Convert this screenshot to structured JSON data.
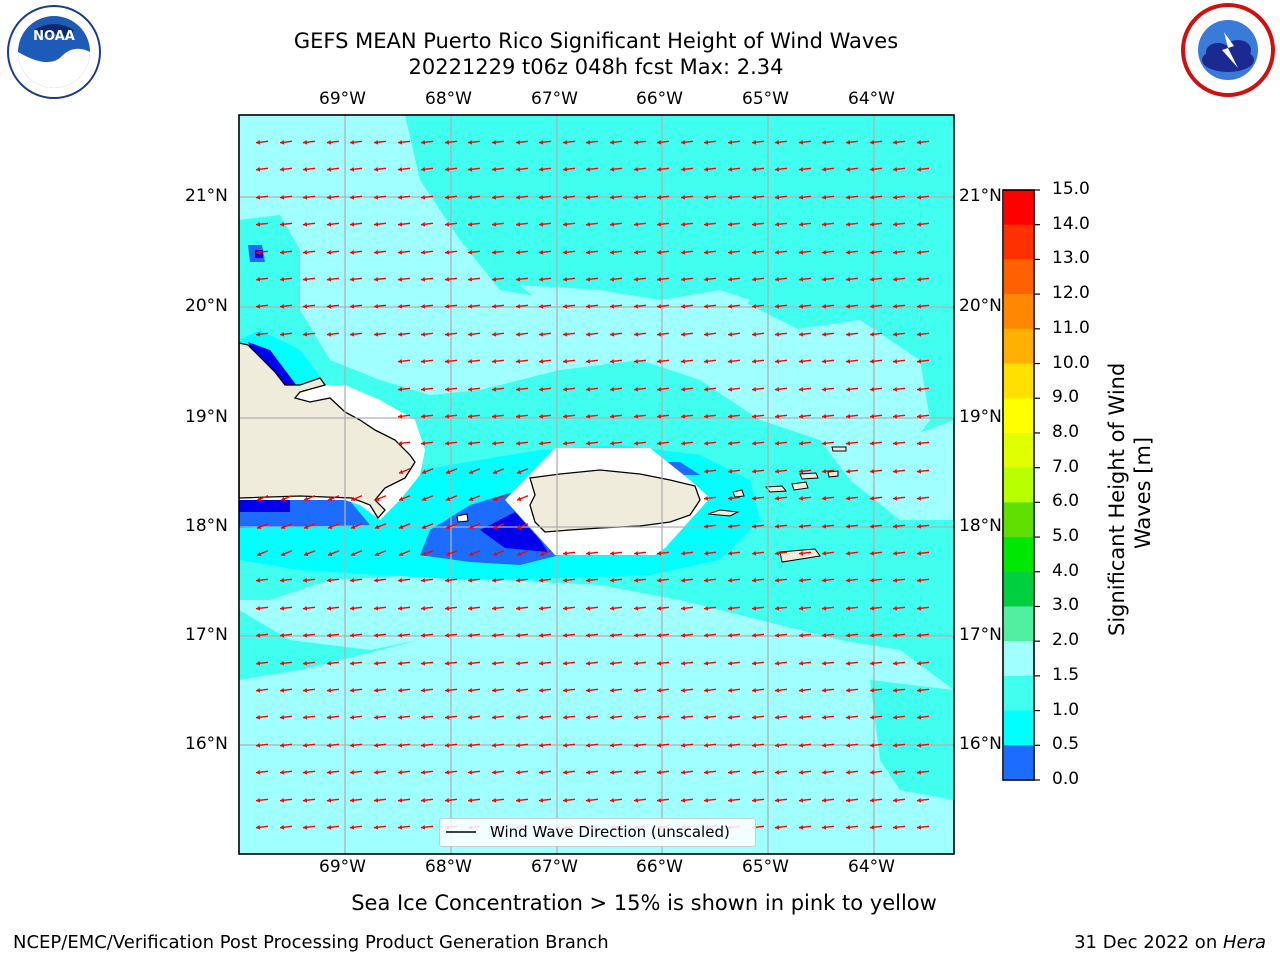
{
  "title": {
    "line1": "GEFS MEAN Puerto Rico Significant Height of Wind Waves",
    "line2": "20221229 t06z 048h fcst   Max: 2.34"
  },
  "logos": {
    "left": "noaa-logo",
    "right": "national-weather-service-logo"
  },
  "map": {
    "lon_labels": [
      "69°W",
      "68°W",
      "67°W",
      "66°W",
      "65°W",
      "64°W"
    ],
    "lat_labels": [
      "21°N",
      "20°N",
      "19°N",
      "18°N",
      "17°N",
      "16°N"
    ],
    "legend_label": "Wind Wave Direction (unscaled)",
    "arrow_color": "#ff0000",
    "land_color": "#efecdc",
    "sea_colors": {
      "0.0-0.5": "#0000ee",
      "0.5-1.0": "#1c6cff",
      "1.0-1.5": "#00ffff",
      "1.5-2.0": "#40ffee",
      "2.0-3.0": "#a0ffff"
    }
  },
  "colorbar": {
    "title": "Significant Height of Wind Waves [m]",
    "ticks": [
      "15.0",
      "14.0",
      "13.0",
      "12.0",
      "11.0",
      "10.0",
      "9.0",
      "8.0",
      "7.0",
      "6.0",
      "5.0",
      "4.0",
      "3.0",
      "2.0",
      "1.5",
      "1.0",
      "0.5",
      "0.0"
    ],
    "colors": [
      "#ff0000",
      "#ff3000",
      "#ff6000",
      "#ff8800",
      "#ffb000",
      "#ffe000",
      "#ffff00",
      "#e0ff00",
      "#b8ff00",
      "#60e000",
      "#00e800",
      "#00d040",
      "#50f0a0",
      "#a0ffff",
      "#40ffee",
      "#00ffff",
      "#1c6cff",
      "#0000ee"
    ]
  },
  "footer": {
    "sea_ice_note": "Sea Ice Concentration > 15% is shown in pink to yellow",
    "branch": "NCEP/EMC/Verification Post Processing Product Generation Branch",
    "date_prefix": "31 Dec 2022 on ",
    "machine": "Hera"
  }
}
